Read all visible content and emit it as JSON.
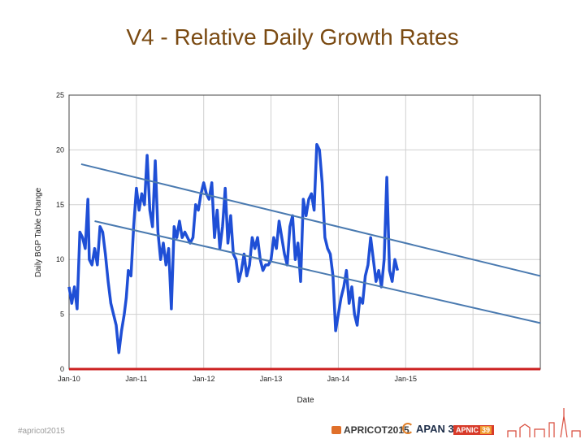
{
  "slide": {
    "title": "V4 - Relative Daily Growth Rates",
    "footer_hashtag": "#apricot2015"
  },
  "logos": {
    "apricot": "APRICOT2015",
    "apan": "APAN 39",
    "apnic": "APNIC",
    "apnic_num": "39"
  },
  "colors": {
    "title": "#7a4a12",
    "series": "#1f4fd6",
    "trend": "#4a7ab0",
    "baseline": "#cc2222",
    "grid": "#d0d0d0"
  },
  "chart_data": {
    "type": "line",
    "title": "",
    "xlabel": "Date",
    "ylabel": "Daily BGP Table Change",
    "xlim": [
      2010.0,
      2017.0
    ],
    "ylim": [
      0,
      25
    ],
    "yticks": [
      0,
      5,
      10,
      15,
      20,
      25
    ],
    "xticks": [
      {
        "label": "Jan-10",
        "value": 2010
      },
      {
        "label": "Jan-11",
        "value": 2011
      },
      {
        "label": "Jan-12",
        "value": 2012
      },
      {
        "label": "Jan-13",
        "value": 2013
      },
      {
        "label": "Jan-14",
        "value": 2014
      },
      {
        "label": "Jan-15",
        "value": 2015
      }
    ],
    "series": [
      {
        "name": "Daily BGP Table Change",
        "x": [
          2010.0,
          2010.04,
          2010.08,
          2010.12,
          2010.16,
          2010.2,
          2010.24,
          2010.28,
          2010.3,
          2010.34,
          2010.38,
          2010.42,
          2010.46,
          2010.5,
          2010.54,
          2010.58,
          2010.62,
          2010.66,
          2010.7,
          2010.74,
          2010.78,
          2010.82,
          2010.85,
          2010.88,
          2010.92,
          2010.96,
          2011.0,
          2011.04,
          2011.08,
          2011.12,
          2011.16,
          2011.2,
          2011.24,
          2011.28,
          2011.32,
          2011.36,
          2011.4,
          2011.44,
          2011.48,
          2011.52,
          2011.56,
          2011.6,
          2011.64,
          2011.68,
          2011.72,
          2011.76,
          2011.8,
          2011.84,
          2011.88,
          2011.92,
          2011.96,
          2012.0,
          2012.04,
          2012.08,
          2012.12,
          2012.16,
          2012.2,
          2012.24,
          2012.28,
          2012.32,
          2012.36,
          2012.4,
          2012.44,
          2012.48,
          2012.52,
          2012.56,
          2012.6,
          2012.64,
          2012.68,
          2012.72,
          2012.76,
          2012.8,
          2012.84,
          2012.88,
          2012.92,
          2012.96,
          2013.0,
          2013.04,
          2013.08,
          2013.12,
          2013.16,
          2013.2,
          2013.24,
          2013.28,
          2013.32,
          2013.36,
          2013.4,
          2013.44,
          2013.48,
          2013.52,
          2013.56,
          2013.6,
          2013.64,
          2013.68,
          2013.72,
          2013.76,
          2013.8,
          2013.84,
          2013.88,
          2013.92,
          2013.96,
          2014.0,
          2014.04,
          2014.08,
          2014.12,
          2014.16,
          2014.2,
          2014.24,
          2014.28,
          2014.32,
          2014.36,
          2014.4,
          2014.44,
          2014.48,
          2014.52,
          2014.56,
          2014.6,
          2014.64,
          2014.68,
          2014.72,
          2014.76,
          2014.8,
          2014.84,
          2014.88
        ],
        "values": [
          7.5,
          6.0,
          7.5,
          5.5,
          12.5,
          12.0,
          11.0,
          15.5,
          10.0,
          9.5,
          11.0,
          9.5,
          13.0,
          12.5,
          10.5,
          8.0,
          6.0,
          5.0,
          4.0,
          1.5,
          3.5,
          5.0,
          6.5,
          9.0,
          8.5,
          13.0,
          16.5,
          14.5,
          16.0,
          15.0,
          19.5,
          14.5,
          13.0,
          19.0,
          12.5,
          10.0,
          11.5,
          9.5,
          11.0,
          5.5,
          13.0,
          12.0,
          13.5,
          12.0,
          12.5,
          12.0,
          11.5,
          12.0,
          15.0,
          14.5,
          16.0,
          17.0,
          16.0,
          15.5,
          17.0,
          12.0,
          14.5,
          11.0,
          13.0,
          16.5,
          11.5,
          14.0,
          10.5,
          10.0,
          8.0,
          9.0,
          10.5,
          8.5,
          9.5,
          12.0,
          11.0,
          12.0,
          10.0,
          9.0,
          9.5,
          9.5,
          10.0,
          12.0,
          11.0,
          13.5,
          12.0,
          10.5,
          9.5,
          13.0,
          14.0,
          10.0,
          11.5,
          8.0,
          15.5,
          14.0,
          15.5,
          16.0,
          14.5,
          20.5,
          20.0,
          17.0,
          12.0,
          11.0,
          10.5,
          8.5,
          3.5,
          5.0,
          6.5,
          7.5,
          9.0,
          6.0,
          7.5,
          5.0,
          4.0,
          6.5,
          6.0,
          8.5,
          9.5,
          12.0,
          10.0,
          8.0,
          9.0,
          7.5,
          10.0,
          17.5,
          9.0,
          8.0,
          10.0,
          9.0
        ]
      }
    ],
    "trend_lines": [
      {
        "x": [
          2010.18,
          2017.0
        ],
        "y": [
          18.7,
          8.5
        ]
      },
      {
        "x": [
          2010.38,
          2017.0
        ],
        "y": [
          13.5,
          4.2
        ]
      }
    ],
    "baseline": 0,
    "grid": true
  }
}
